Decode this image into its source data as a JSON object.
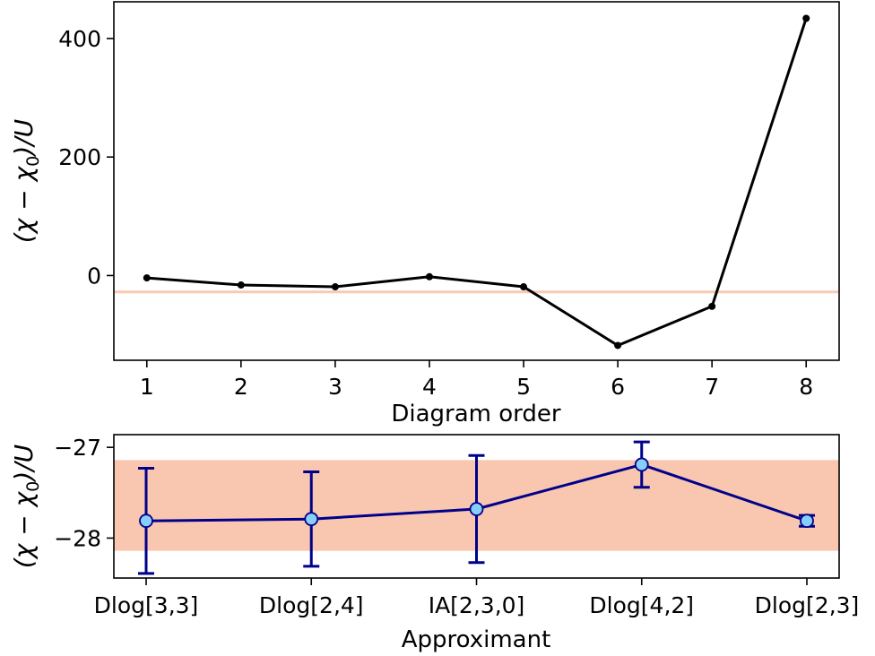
{
  "chart_data": [
    {
      "type": "line",
      "title": "",
      "xlabel": "Diagram order",
      "ylabel": "(χ − χ0)/U",
      "ylabel_parts": {
        "open": "(χ − χ",
        "sub": "0",
        "close": ")/U"
      },
      "x": [
        1,
        2,
        3,
        4,
        5,
        6,
        7,
        8
      ],
      "y": [
        -4,
        -16,
        -19,
        -2,
        -19,
        -118,
        -52,
        434
      ],
      "xticks": [
        1,
        2,
        3,
        4,
        5,
        6,
        7,
        8
      ],
      "xtick_labels": [
        "1",
        "2",
        "3",
        "4",
        "5",
        "6",
        "7",
        "8"
      ],
      "yticks": [
        0,
        200,
        400
      ],
      "ytick_labels": [
        "0",
        "200",
        "400"
      ],
      "xlim": [
        0.65,
        8.35
      ],
      "ylim": [
        -143,
        462
      ],
      "reference_line": {
        "y": -27.6,
        "color": "#f8c9b4"
      },
      "line_color": "#000000",
      "grid": false
    },
    {
      "type": "errorbar",
      "title": "",
      "xlabel": "Approximant",
      "ylabel": "(χ − χ0)/U",
      "ylabel_parts": {
        "open": "(χ − χ",
        "sub": "0",
        "close": ")/U"
      },
      "categories": [
        "Dlog[3,3]",
        "Dlog[2,4]",
        "IA[2,3,0]",
        "Dlog[4,2]",
        "Dlog[2,3]"
      ],
      "values": [
        -27.81,
        -27.79,
        -27.68,
        -27.19,
        -27.81
      ],
      "errors": [
        0.58,
        0.52,
        0.59,
        0.25,
        0.06
      ],
      "yticks": [
        -28,
        -27
      ],
      "ytick_labels": [
        "−28",
        "−27"
      ],
      "ylim": [
        -28.44,
        -26.86
      ],
      "band": {
        "low": -28.14,
        "high": -27.14,
        "color": "#f9c7b0"
      },
      "line_color": "#00008b",
      "marker_color": "#87cefa",
      "grid": false
    }
  ]
}
